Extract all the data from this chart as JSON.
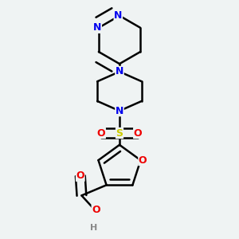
{
  "background_color": "#eff3f3",
  "atom_colors": {
    "C": "#000000",
    "N": "#0000ee",
    "O": "#ee0000",
    "S": "#cccc00",
    "H": "#888888"
  },
  "figsize": [
    3.0,
    3.0
  ],
  "dpi": 100,
  "bond_lw": 1.8,
  "double_sep": 0.018,
  "font_size": 9
}
